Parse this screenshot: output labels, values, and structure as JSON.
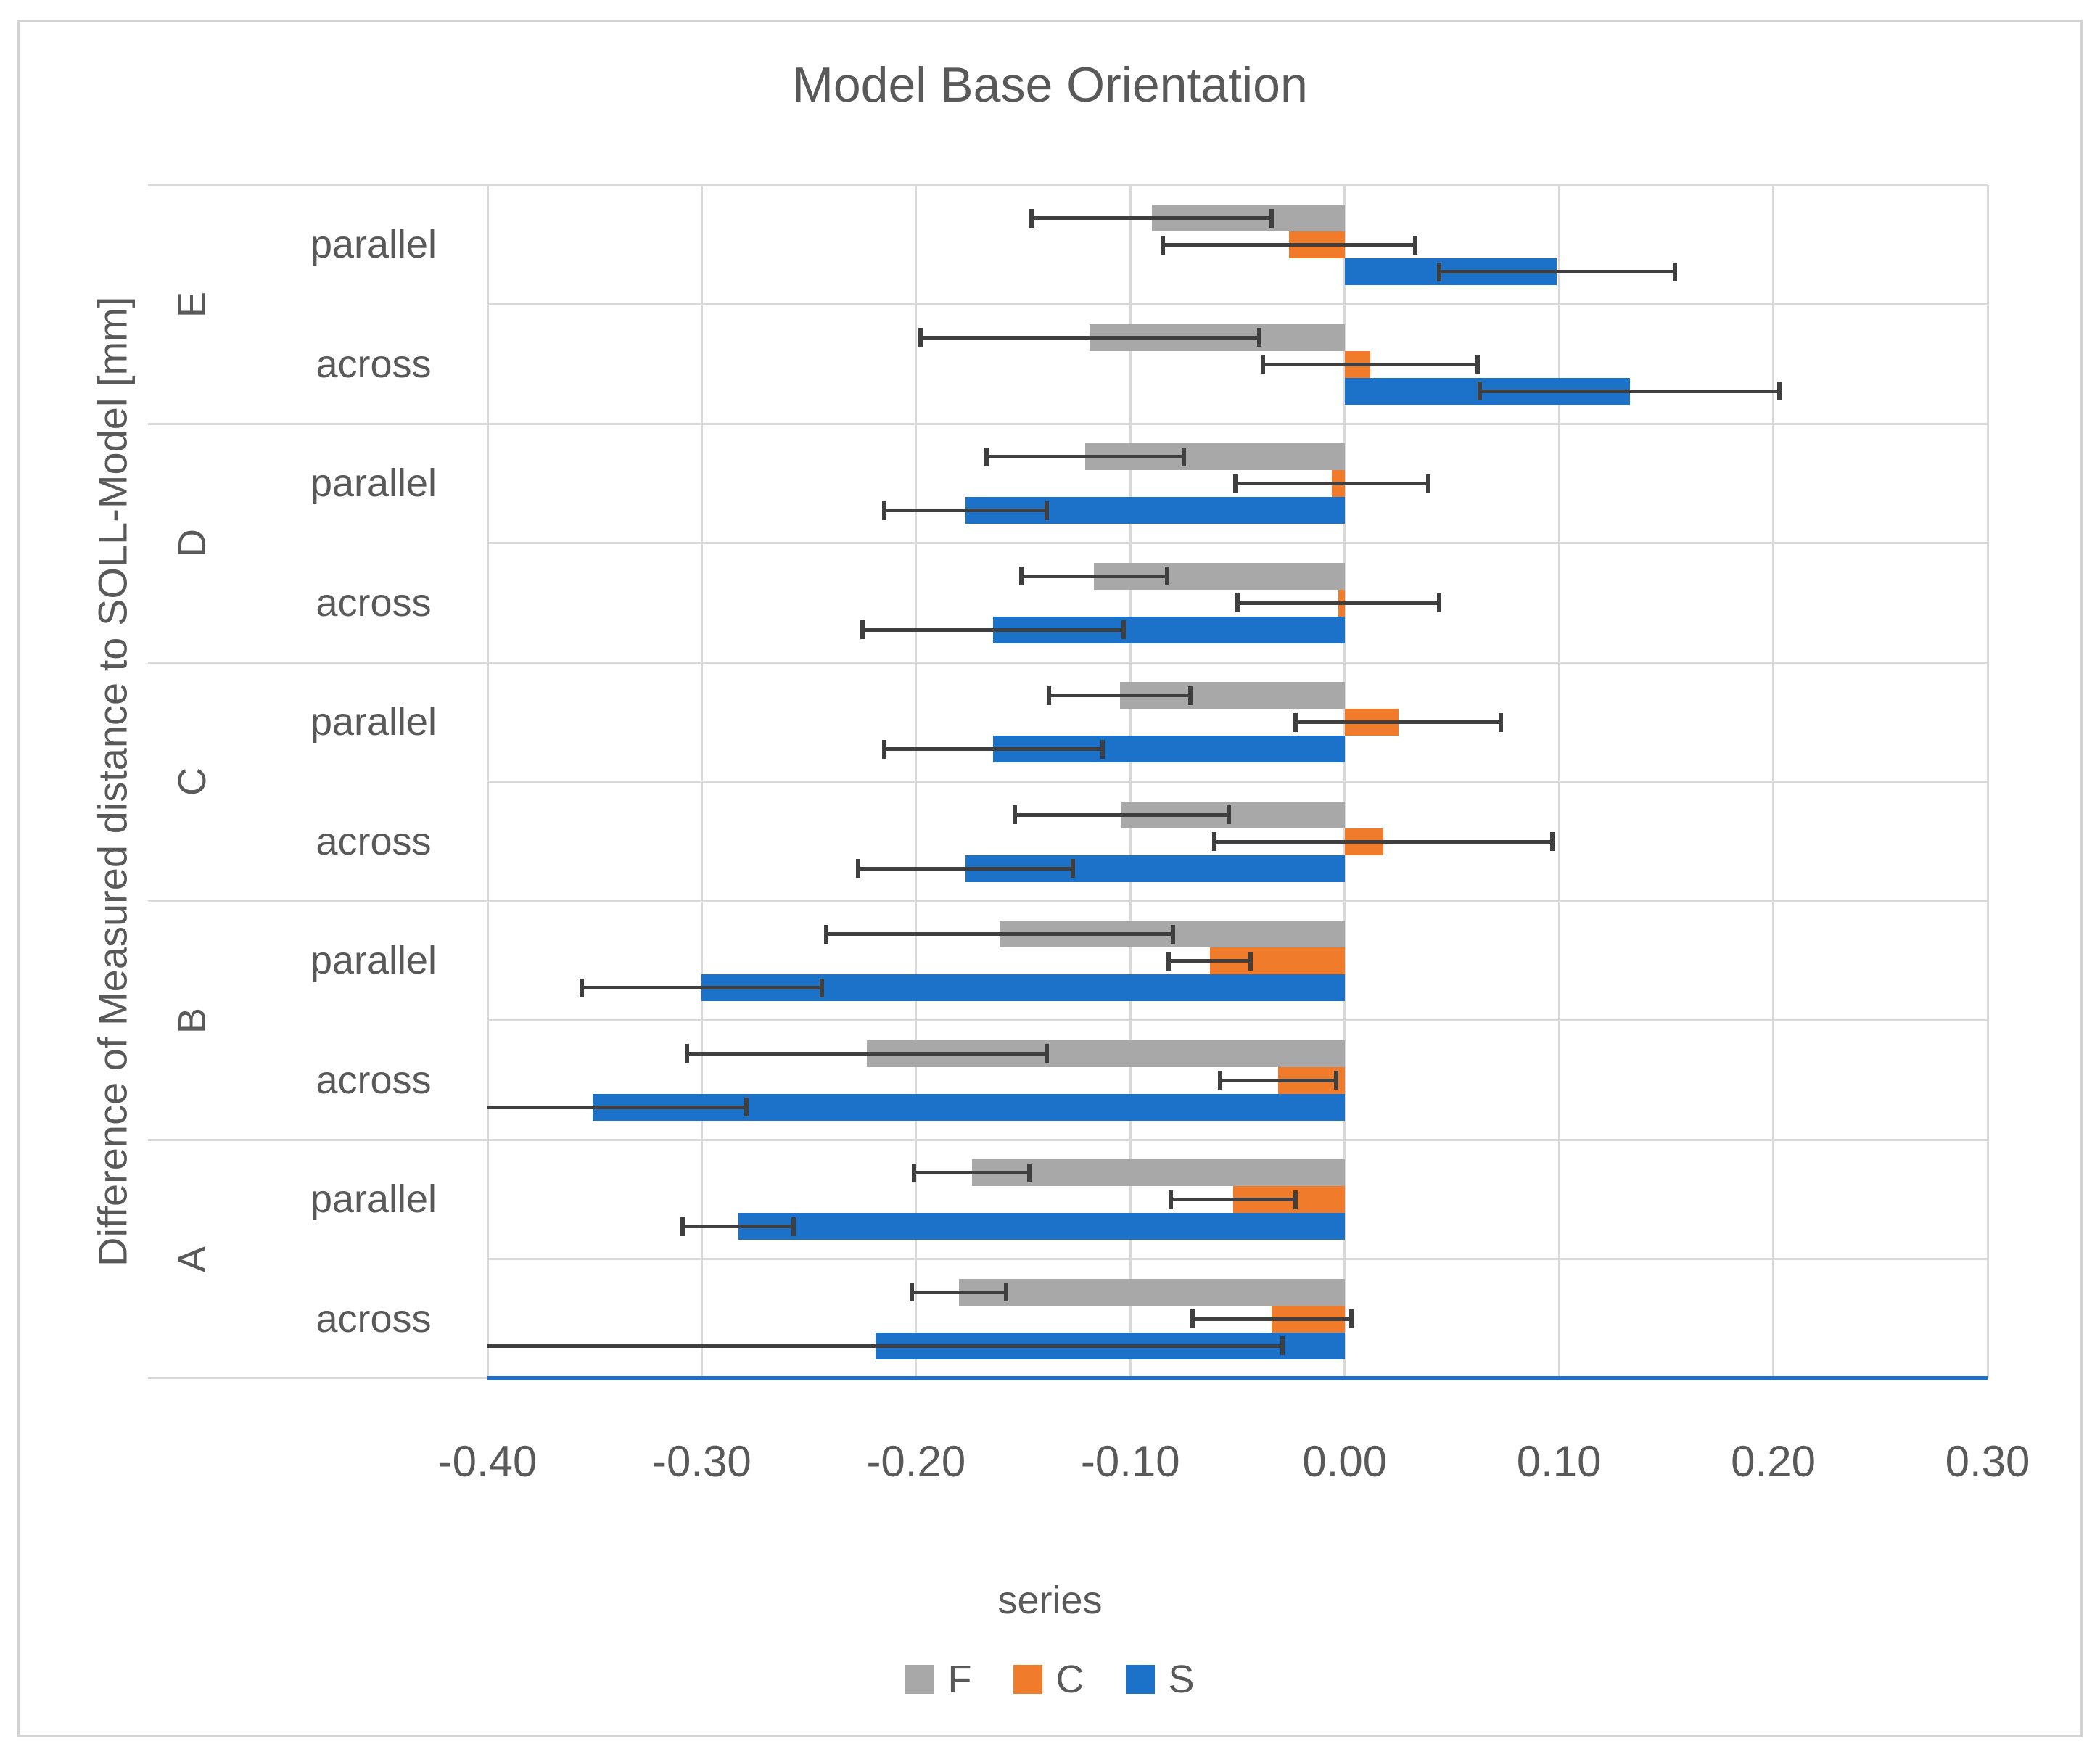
{
  "chart_data": {
    "type": "bar",
    "orientation": "horizontal",
    "title": "Model Base Orientation",
    "ylabel": "Difference of Measured distance to SOLL-Model [mm]",
    "legend_title": "series",
    "xlim": [
      -0.4,
      0.3
    ],
    "x_ticks": [
      "-0.40",
      "-0.30",
      "-0.20",
      "-0.10",
      "0.00",
      "0.10",
      "0.20",
      "0.30"
    ],
    "grid": true,
    "legend_position": "bottom",
    "error_bars": true,
    "colors": {
      "gridline": "#d9d9d9",
      "error_bar": "#3f3f3f",
      "text": "#595959",
      "bottom_axis_line": "#1c72c8"
    },
    "series": [
      {
        "name": "F",
        "color": "#a8a8a8"
      },
      {
        "name": "C",
        "color": "#f07b2a"
      },
      {
        "name": "S",
        "color": "#1c72c8"
      }
    ],
    "groups": [
      {
        "label": "E",
        "rows": [
          {
            "label": "parallel",
            "bars": [
              {
                "series": "F",
                "value": -0.09,
                "error": 0.056
              },
              {
                "series": "C",
                "value": -0.026,
                "error": 0.059
              },
              {
                "series": "S",
                "value": 0.099,
                "error": 0.055
              }
            ]
          },
          {
            "label": "across",
            "bars": [
              {
                "series": "F",
                "value": -0.119,
                "error": 0.079
              },
              {
                "series": "C",
                "value": 0.012,
                "error": 0.05
              },
              {
                "series": "S",
                "value": 0.133,
                "error": 0.07
              }
            ]
          }
        ]
      },
      {
        "label": "D",
        "rows": [
          {
            "label": "parallel",
            "bars": [
              {
                "series": "F",
                "value": -0.121,
                "error": 0.046
              },
              {
                "series": "C",
                "value": -0.006,
                "error": 0.045
              },
              {
                "series": "S",
                "value": -0.177,
                "error": 0.038
              }
            ]
          },
          {
            "label": "across",
            "bars": [
              {
                "series": "F",
                "value": -0.117,
                "error": 0.034
              },
              {
                "series": "C",
                "value": -0.003,
                "error": 0.047
              },
              {
                "series": "S",
                "value": -0.164,
                "error": 0.061
              }
            ]
          }
        ]
      },
      {
        "label": "C",
        "rows": [
          {
            "label": "parallel",
            "bars": [
              {
                "series": "F",
                "value": -0.105,
                "error": 0.033
              },
              {
                "series": "C",
                "value": 0.025,
                "error": 0.048
              },
              {
                "series": "S",
                "value": -0.164,
                "error": 0.051
              }
            ]
          },
          {
            "label": "across",
            "bars": [
              {
                "series": "F",
                "value": -0.104,
                "error": 0.05
              },
              {
                "series": "C",
                "value": 0.018,
                "error": 0.079
              },
              {
                "series": "S",
                "value": -0.177,
                "error": 0.05
              }
            ]
          }
        ]
      },
      {
        "label": "B",
        "rows": [
          {
            "label": "parallel",
            "bars": [
              {
                "series": "F",
                "value": -0.161,
                "error": 0.081
              },
              {
                "series": "C",
                "value": -0.063,
                "error": 0.019
              },
              {
                "series": "S",
                "value": -0.3,
                "error": 0.056
              }
            ]
          },
          {
            "label": "across",
            "bars": [
              {
                "series": "F",
                "value": -0.223,
                "error": 0.084
              },
              {
                "series": "C",
                "value": -0.031,
                "error": 0.027
              },
              {
                "series": "S",
                "value": -0.351,
                "error": 0.072
              }
            ]
          }
        ]
      },
      {
        "label": "A",
        "rows": [
          {
            "label": "parallel",
            "bars": [
              {
                "series": "F",
                "value": -0.174,
                "error": 0.027
              },
              {
                "series": "C",
                "value": -0.052,
                "error": 0.029
              },
              {
                "series": "S",
                "value": -0.283,
                "error": 0.026
              }
            ]
          },
          {
            "label": "across",
            "bars": [
              {
                "series": "F",
                "value": -0.18,
                "error": 0.022
              },
              {
                "series": "C",
                "value": -0.034,
                "error": 0.037
              },
              {
                "series": "S",
                "value": -0.219,
                "error": 0.19
              }
            ]
          }
        ]
      }
    ]
  }
}
